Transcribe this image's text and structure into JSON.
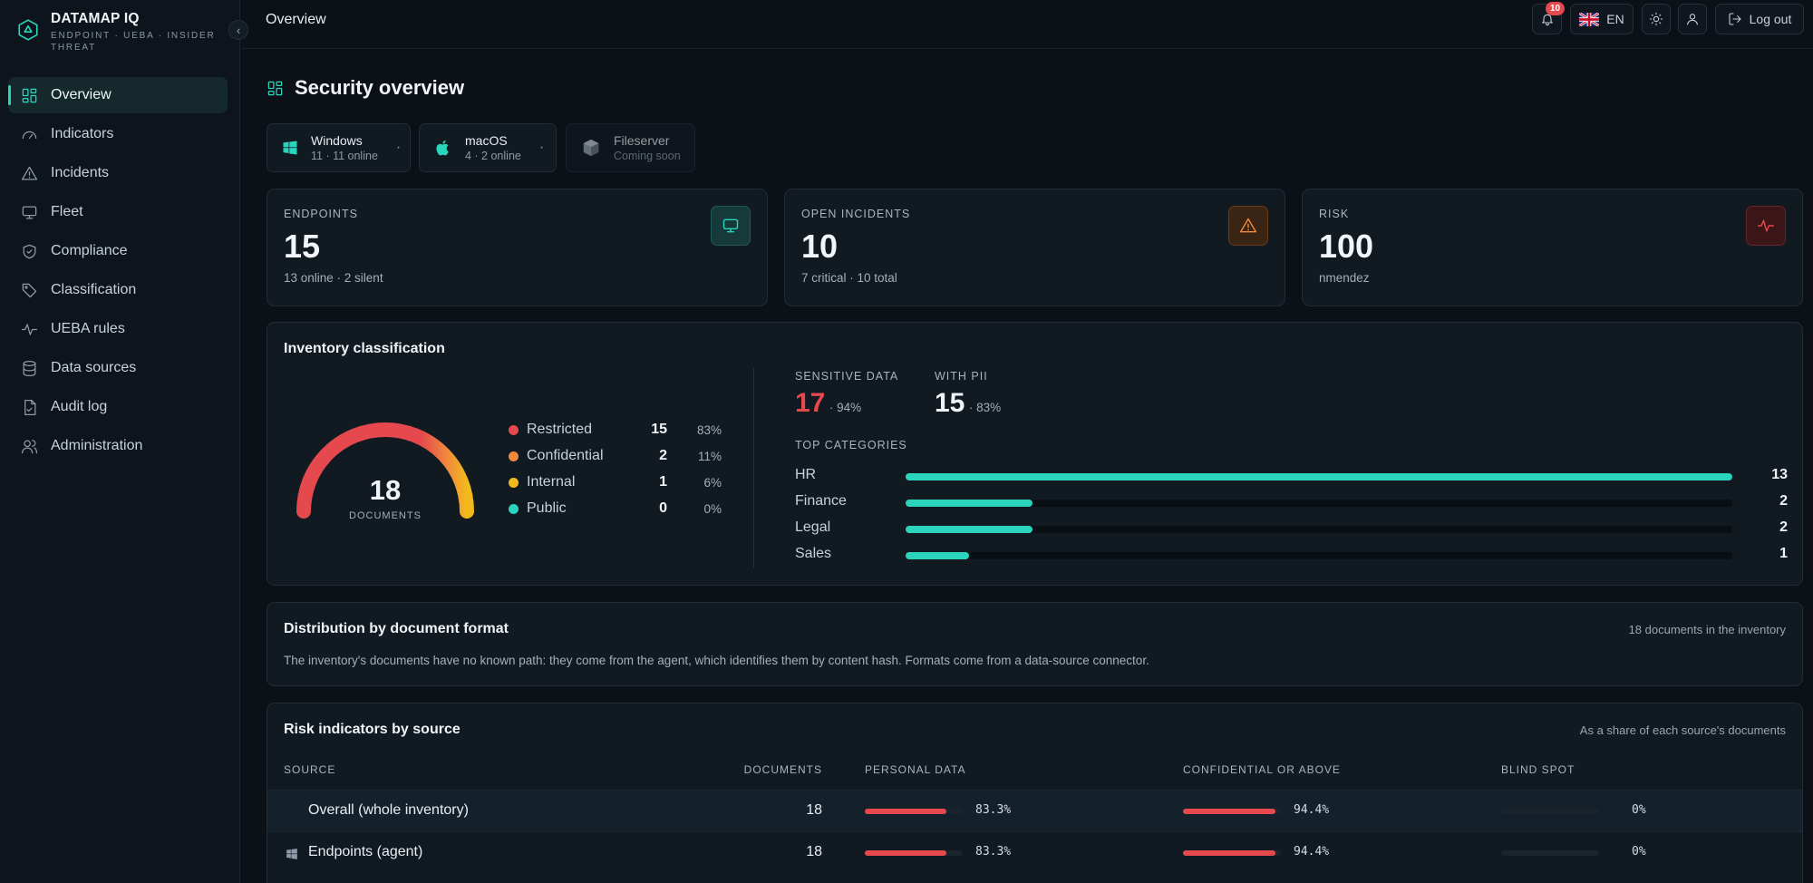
{
  "app": {
    "name": "DATAMAP IQ",
    "tagline": "ENDPOINT · UEBA · INSIDER THREAT"
  },
  "sidebar": {
    "items": [
      {
        "label": "Overview",
        "icon": "grid-icon",
        "active": true
      },
      {
        "label": "Indicators",
        "icon": "gauge-icon"
      },
      {
        "label": "Incidents",
        "icon": "warning-icon"
      },
      {
        "label": "Fleet",
        "icon": "monitor-icon"
      },
      {
        "label": "Compliance",
        "icon": "shield-check-icon"
      },
      {
        "label": "Classification",
        "icon": "tag-icon"
      },
      {
        "label": "UEBA rules",
        "icon": "pulse-icon"
      },
      {
        "label": "Data sources",
        "icon": "database-icon"
      },
      {
        "label": "Audit log",
        "icon": "file-check-icon"
      },
      {
        "label": "Administration",
        "icon": "users-icon"
      }
    ]
  },
  "topbar": {
    "title": "Overview",
    "notifications": "10",
    "language": "EN",
    "logout": "Log out"
  },
  "page": {
    "title": "Security overview"
  },
  "os_cards": [
    {
      "name": "Windows",
      "sub": "11 · 11 online",
      "dot": "·"
    },
    {
      "name": "macOS",
      "sub": "4 · 2 online",
      "dot": "·"
    },
    {
      "name": "Fileserver",
      "sub": "Coming soon"
    }
  ],
  "stats": [
    {
      "label": "ENDPOINTS",
      "value": "15",
      "sub": "13 online · 2 silent",
      "accent": "#2bd4bd"
    },
    {
      "label": "OPEN INCIDENTS",
      "value": "10",
      "sub": "7 critical · 10 total",
      "accent": "#f08a3c"
    },
    {
      "label": "RISK",
      "value": "100",
      "sub": "nmendez",
      "accent": "#e5484d"
    }
  ],
  "inventory": {
    "title": "Inventory classification",
    "total": "18",
    "total_label": "DOCUMENTS",
    "legend": [
      {
        "name": "Restricted",
        "count": "15",
        "pct": "83%",
        "color": "#e5484d"
      },
      {
        "name": "Confidential",
        "count": "2",
        "pct": "11%",
        "color": "#f08a3c"
      },
      {
        "name": "Internal",
        "count": "1",
        "pct": "6%",
        "color": "#f2b91c"
      },
      {
        "name": "Public",
        "count": "0",
        "pct": "0%",
        "color": "#2bd4bd"
      }
    ],
    "sensitive_label": "SENSITIVE DATA",
    "sensitive_value": "17",
    "sensitive_pct": "· 94%",
    "pii_label": "WITH PII",
    "pii_value": "15",
    "pii_pct": "· 83%",
    "top_label": "TOP CATEGORIES",
    "categories": [
      {
        "name": "HR",
        "value": 13
      },
      {
        "name": "Finance",
        "value": 2
      },
      {
        "name": "Legal",
        "value": 2
      },
      {
        "name": "Sales",
        "value": 1
      }
    ]
  },
  "distribution": {
    "title": "Distribution by document format",
    "note": "18 documents in the inventory",
    "text": "The inventory's documents have no known path: they come from the agent, which identifies them by content hash. Formats come from a data-source connector."
  },
  "risk_table": {
    "title": "Risk indicators by source",
    "note": "As a share of each source's documents",
    "headers": {
      "source": "SOURCE",
      "documents": "DOCUMENTS",
      "personal": "PERSONAL DATA",
      "confidential": "CONFIDENTIAL OR ABOVE",
      "blind": "BLIND SPOT"
    },
    "rows": [
      {
        "source": "Overall (whole inventory)",
        "documents": "18",
        "personal": "83.3%",
        "personal_value": 0.833,
        "confidential": "94.4%",
        "confidential_value": 0.944,
        "blind": "0%",
        "blind_value": 0
      },
      {
        "source": "Endpoints (agent)",
        "documents": "18",
        "personal": "83.3%",
        "personal_value": 0.833,
        "confidential": "94.4%",
        "confidential_value": 0.944,
        "blind": "0%",
        "blind_value": 0
      }
    ]
  }
}
